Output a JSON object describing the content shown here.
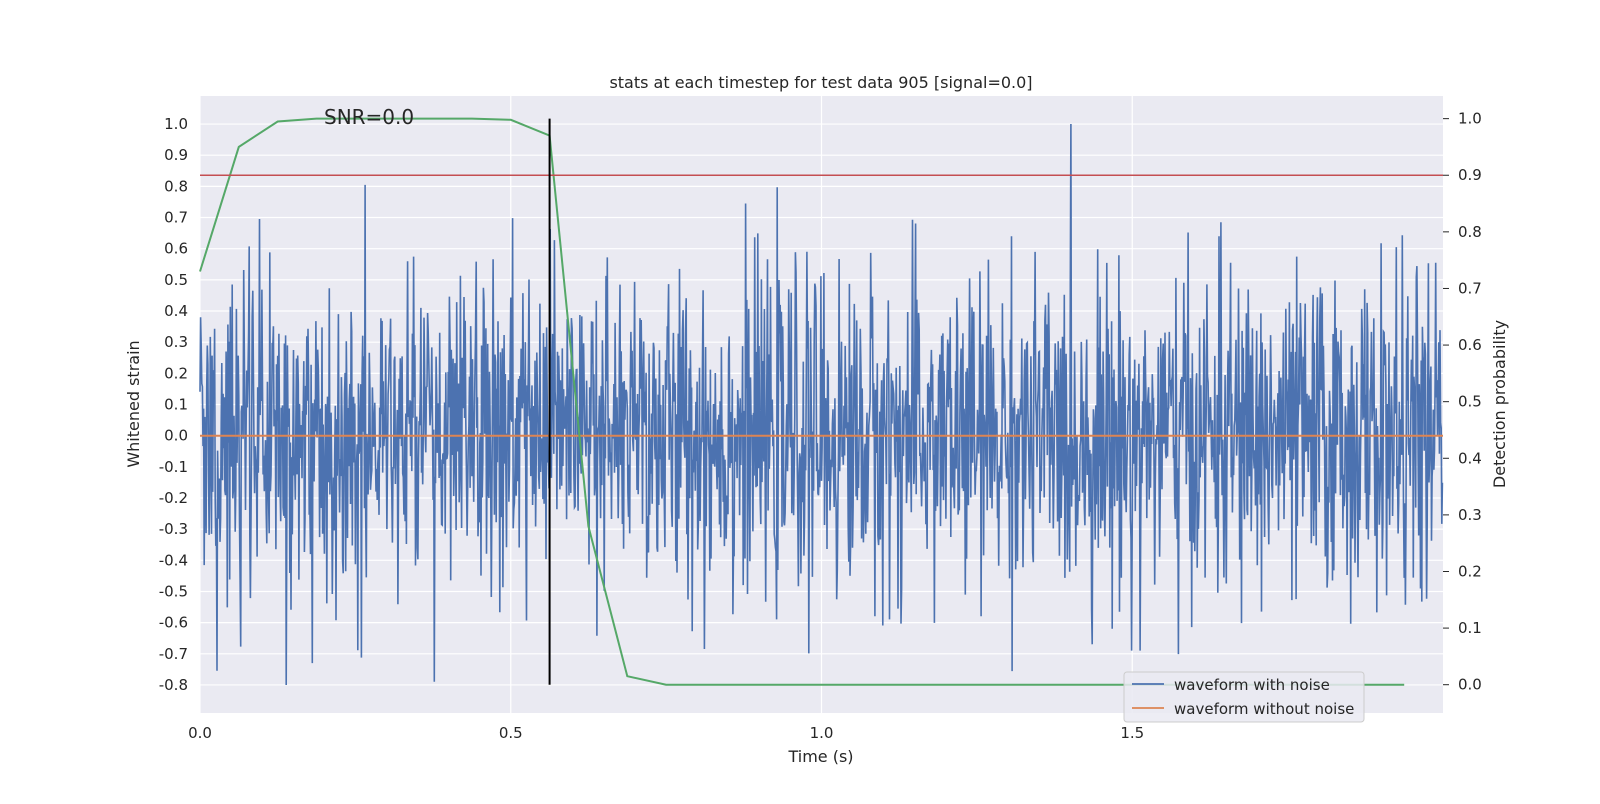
{
  "chart_data": {
    "type": "line",
    "title": "stats at each timestep for test data 905 [signal=0.0]",
    "annotation": "SNR=0.0",
    "xlabel": "Time (s)",
    "ylabel_left": "Whitened strain",
    "ylabel_right": "Detection probability",
    "xlim": [
      0.0,
      2.0
    ],
    "ylim_left": [
      -0.89,
      1.09
    ],
    "ylim_right": [
      -0.05,
      1.04
    ],
    "x_ticks": [
      "0.0",
      "0.5",
      "1.0",
      "1.5"
    ],
    "y_ticks_left": [
      "1.0",
      "0.9",
      "0.8",
      "0.7",
      "0.6",
      "0.5",
      "0.4",
      "0.3",
      "0.2",
      "0.1",
      "0.0",
      "-0.1",
      "-0.2",
      "-0.3",
      "-0.4",
      "-0.5",
      "-0.6",
      "-0.7",
      "-0.8"
    ],
    "y_ticks_right": [
      "1.0",
      "0.9",
      "0.8",
      "0.7",
      "0.6",
      "0.5",
      "0.4",
      "0.3",
      "0.2",
      "0.1",
      "0.0"
    ],
    "grid": true,
    "legend_position": "lower right",
    "series": [
      {
        "name": "waveform with noise",
        "axis": "left",
        "color": "#4c72b0",
        "kind": "noise",
        "n_samples": 2048,
        "approx_range": [
          -0.8,
          1.0
        ],
        "approx_std": 0.25
      },
      {
        "name": "waveform without noise",
        "axis": "left",
        "color": "#dd8452",
        "x": [
          0.0,
          2.0
        ],
        "y": [
          0.0,
          0.0
        ]
      },
      {
        "axis": "right",
        "color": "#55a868",
        "x": [
          0.0,
          0.0625,
          0.125,
          0.1875,
          0.25,
          0.3125,
          0.375,
          0.4375,
          0.5,
          0.5625,
          0.625,
          0.6875,
          0.75,
          0.8125,
          0.875,
          1.0,
          1.25,
          1.5,
          1.75,
          1.9375
        ],
        "y": [
          0.73,
          0.95,
          0.995,
          1.0,
          1.0,
          1.0,
          1.0,
          1.0,
          0.998,
          0.97,
          0.28,
          0.015,
          0.0,
          0.0,
          0.0,
          0.0,
          0.0,
          0.0,
          0.0,
          0.0
        ]
      },
      {
        "axis": "right",
        "color": "#c44e52",
        "kind": "threshold",
        "y": 0.9
      },
      {
        "axis": "right",
        "color": "#000000",
        "kind": "vertical-marker",
        "x": 0.5625,
        "y_range": [
          0.0,
          1.0
        ]
      }
    ]
  }
}
